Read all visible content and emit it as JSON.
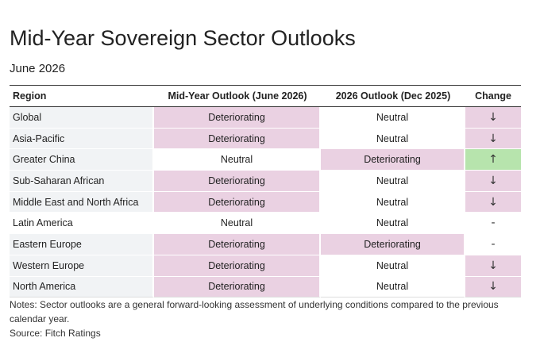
{
  "title": "Mid-Year Sovereign Sector Outlooks",
  "subtitle": "June 2026",
  "table": {
    "headers": {
      "region": "Region",
      "mid_year": "Mid-Year Outlook (June 2026)",
      "outlook_2026": "2026 Outlook (Dec 2025)",
      "change": "Change"
    },
    "rows": [
      {
        "region": "Global",
        "mid_year": "Deteriorating",
        "outlook_2026": "Neutral",
        "change": "↓",
        "change_type": "down"
      },
      {
        "region": "Asia-Pacific",
        "mid_year": "Deteriorating",
        "outlook_2026": "Neutral",
        "change": "↓",
        "change_type": "down"
      },
      {
        "region": "Greater China",
        "mid_year": "Neutral",
        "outlook_2026": "Deteriorating",
        "change": "↑",
        "change_type": "up"
      },
      {
        "region": "Sub-Saharan African",
        "mid_year": "Deteriorating",
        "outlook_2026": "Neutral",
        "change": "↓",
        "change_type": "down"
      },
      {
        "region": "Middle East and North Africa",
        "mid_year": "Deteriorating",
        "outlook_2026": "Neutral",
        "change": "↓",
        "change_type": "down"
      },
      {
        "region": "Latin America",
        "mid_year": "Neutral",
        "outlook_2026": "Neutral",
        "change": "-",
        "change_type": "none"
      },
      {
        "region": "Eastern Europe",
        "mid_year": "Deteriorating",
        "outlook_2026": "Deteriorating",
        "change": "-",
        "change_type": "none"
      },
      {
        "region": "Western Europe",
        "mid_year": "Deteriorating",
        "outlook_2026": "Neutral",
        "change": "↓",
        "change_type": "down"
      },
      {
        "region": "North America",
        "mid_year": "Deteriorating",
        "outlook_2026": "Neutral",
        "change": "↓",
        "change_type": "down"
      }
    ]
  },
  "notes": {
    "line1": "Notes: Sector outlooks are a general forward-looking assessment of underlying conditions compared to the previous calendar year.",
    "source": "Source: Fitch Ratings"
  },
  "colors": {
    "deteriorating": "#ead1e2",
    "neutral": "#ffffff",
    "improving_change": "#b7e4ad",
    "region_band": "#f1f3f5"
  }
}
